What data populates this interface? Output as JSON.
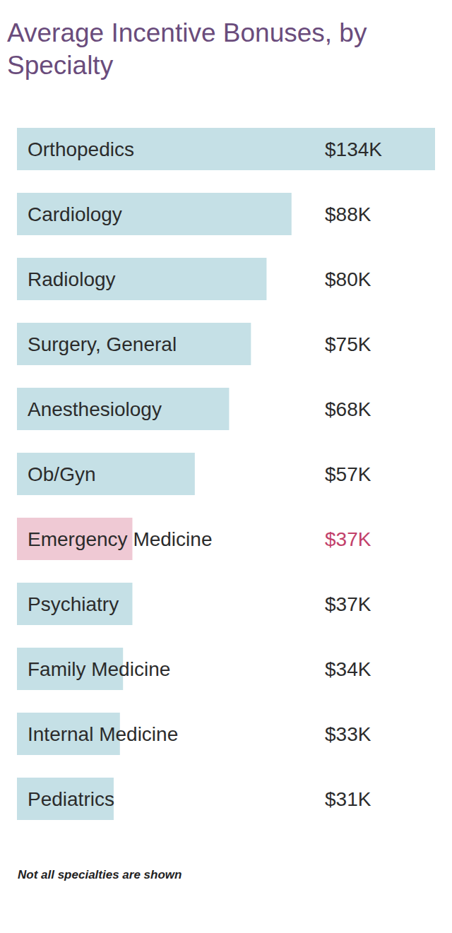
{
  "chart_data": {
    "type": "bar",
    "orientation": "horizontal",
    "title": "Average Incentive Bonuses, by Specialty",
    "categories": [
      "Orthopedics",
      "Cardiology",
      "Radiology",
      "Surgery, General",
      "Anesthesiology",
      "Ob/Gyn",
      "Emergency Medicine",
      "Psychiatry",
      "Family Medicine",
      "Internal Medicine",
      "Pediatrics"
    ],
    "values": [
      134,
      88,
      80,
      75,
      68,
      57,
      37,
      37,
      34,
      33,
      31
    ],
    "value_labels": [
      "$134K",
      "$88K",
      "$80K",
      "$75K",
      "$68K",
      "$57K",
      "$37K",
      "$37K",
      "$34K",
      "$33K",
      "$31K"
    ],
    "color": "#c5e0e6",
    "colors": [
      "#c5e0e6",
      "#c5e0e6",
      "#c5e0e6",
      "#c5e0e6",
      "#c5e0e6",
      "#c5e0e6",
      "#efc9d4",
      "#c5e0e6",
      "#c5e0e6",
      "#c5e0e6",
      "#c5e0e6"
    ],
    "xlim": [
      0,
      134
    ],
    "data_labels": true,
    "tick_labels": "y",
    "grid": false,
    "annotations": [
      "Not all specialties are shown"
    ]
  }
}
